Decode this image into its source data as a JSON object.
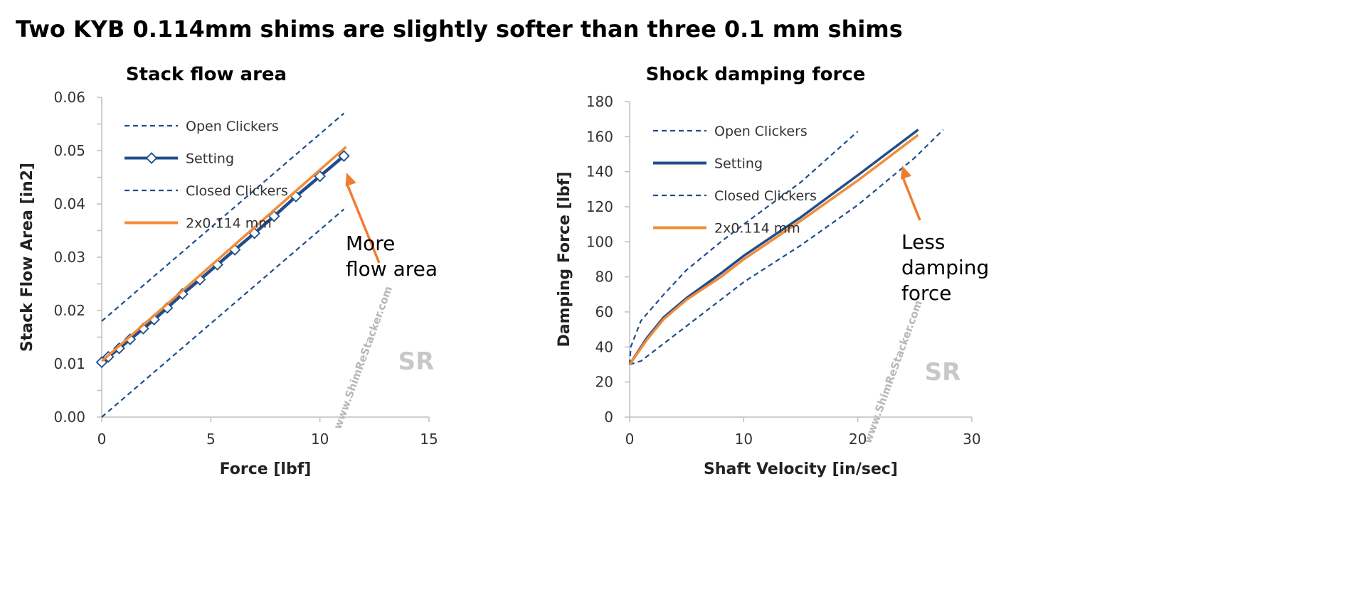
{
  "title": "Two KYB 0.114mm shims are slightly softer than three 0.1 mm shims",
  "colors": {
    "setting": "#1f4e8c",
    "open": "#1f4e8c",
    "closed": "#1f4e8c",
    "alt": "#f28c38",
    "arrow": "#ee7d31",
    "axis": "#bfbfbf"
  },
  "watermark": "www.ShimReStacker.com",
  "chart_data": [
    {
      "type": "line",
      "title": "Stack flow area",
      "xlabel": "Force [lbf]",
      "ylabel": "Stack Flow Area [in2]",
      "xlim": [
        0,
        15
      ],
      "ylim": [
        0,
        0.06
      ],
      "xticks": [
        "0",
        "5",
        "10",
        "15"
      ],
      "yticks": [
        "0.00",
        "0.01",
        "0.02",
        "0.03",
        "0.04",
        "0.05",
        "0.06"
      ],
      "grid": false,
      "legend": "top-left",
      "annotation": [
        "More",
        "flow area"
      ],
      "series": [
        {
          "name": "Open Clickers",
          "style": "dashed",
          "x": [
            0,
            11.1
          ],
          "y": [
            0.018,
            0.057
          ]
        },
        {
          "name": "Setting",
          "style": "solid-markers",
          "x": [
            0,
            0.3,
            0.8,
            1.3,
            1.9,
            2.4,
            3.0,
            3.7,
            4.5,
            5.3,
            6.1,
            7.0,
            7.9,
            8.9,
            10.0,
            11.1
          ],
          "y": [
            0.0103,
            0.0113,
            0.0129,
            0.0146,
            0.0166,
            0.0183,
            0.0205,
            0.0231,
            0.0258,
            0.0286,
            0.0314,
            0.0345,
            0.0377,
            0.0414,
            0.0452,
            0.049
          ]
        },
        {
          "name": "Closed Clickers",
          "style": "dashed",
          "x": [
            0,
            11.1
          ],
          "y": [
            0.0,
            0.039
          ]
        },
        {
          "name": "2x0.114 mm",
          "style": "solid",
          "x": [
            0,
            3.0,
            6.0,
            9.0,
            11.2
          ],
          "y": [
            0.0105,
            0.0212,
            0.032,
            0.0428,
            0.0507
          ]
        }
      ]
    },
    {
      "type": "line",
      "title": "Shock damping force",
      "xlabel": "Shaft Velocity [in/sec]",
      "ylabel": "Damping Force [lbf]",
      "xlim": [
        0,
        30
      ],
      "ylim": [
        0,
        180
      ],
      "xticks": [
        "0",
        "10",
        "20",
        "30"
      ],
      "yticks": [
        "0",
        "20",
        "40",
        "60",
        "80",
        "100",
        "120",
        "140",
        "160",
        "180"
      ],
      "grid": false,
      "legend": "top-left",
      "annotation": [
        "Less",
        "damping",
        "force"
      ],
      "series": [
        {
          "name": "Open Clickers",
          "style": "dashed",
          "x": [
            0,
            0.1,
            1,
            3,
            5,
            8,
            10,
            15,
            20
          ],
          "y": [
            30,
            40,
            55,
            70,
            84,
            100,
            110,
            134,
            163
          ]
        },
        {
          "name": "Setting",
          "style": "solid",
          "x": [
            0,
            1.5,
            3,
            5,
            8,
            10,
            15,
            20,
            25.3
          ],
          "y": [
            30,
            45,
            57,
            68,
            82,
            92,
            114,
            138,
            164
          ]
        },
        {
          "name": "Closed Clickers",
          "style": "dashed",
          "x": [
            0,
            1,
            3,
            5,
            8,
            10,
            15,
            20,
            25,
            27.5
          ],
          "y": [
            30,
            32,
            42,
            52,
            67,
            77,
            98,
            121,
            148,
            164
          ]
        },
        {
          "name": "2x0.114 mm",
          "style": "solid",
          "x": [
            0,
            1.5,
            3,
            5,
            8,
            10,
            15,
            20,
            25.3
          ],
          "y": [
            30,
            44,
            56,
            67,
            80,
            90,
            112,
            135,
            161
          ]
        }
      ]
    }
  ]
}
